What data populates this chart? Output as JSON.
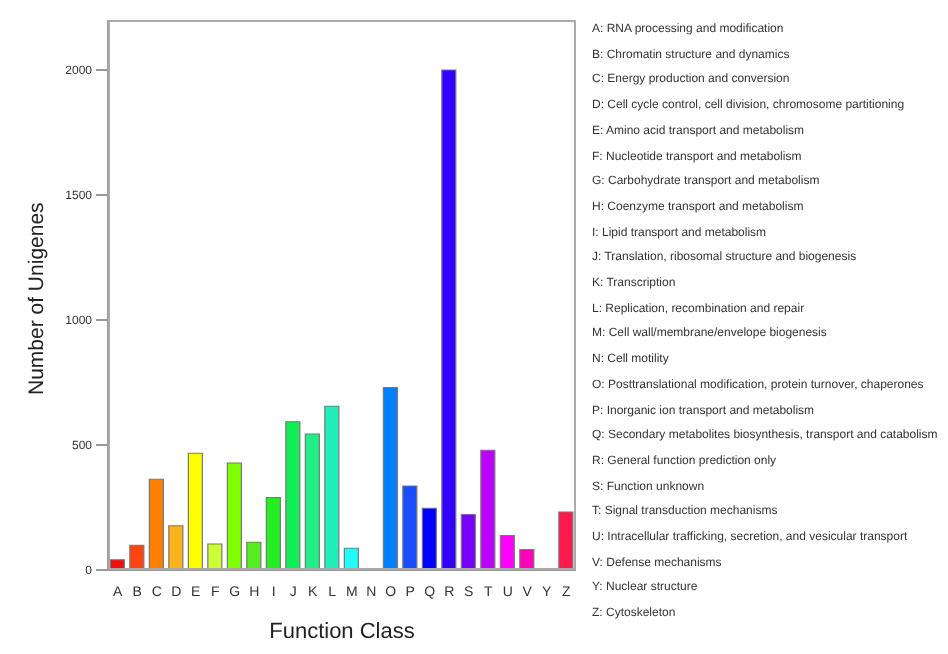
{
  "chart_data": {
    "type": "bar",
    "xlabel": "Function Class",
    "ylabel": "Number of Unigenes",
    "categories": [
      "A",
      "B",
      "C",
      "D",
      "E",
      "F",
      "G",
      "H",
      "I",
      "J",
      "K",
      "L",
      "M",
      "N",
      "O",
      "P",
      "Q",
      "R",
      "S",
      "T",
      "U",
      "V",
      "Y",
      "Z"
    ],
    "values": [
      41,
      99,
      363,
      177,
      467,
      104,
      428,
      111,
      290,
      593,
      544,
      655,
      87,
      5,
      730,
      336,
      247,
      2000,
      222,
      479,
      138,
      82,
      3,
      232
    ],
    "colors": [
      "#ee1111",
      "#ff4411",
      "#ff8000",
      "#ffb31a",
      "#ffff00",
      "#ccff33",
      "#80ff00",
      "#55ee22",
      "#22ee22",
      "#11ee55",
      "#22ee88",
      "#22eebb",
      "#22ffff",
      "#00aaff",
      "#0080ff",
      "#1a4dff",
      "#0000ff",
      "#3300ff",
      "#7700ff",
      "#bb00ff",
      "#ff00ff",
      "#ff00bb",
      "#ff0080",
      "#ff1a4d"
    ],
    "ylim": [
      0,
      2200
    ],
    "yticks": [
      0,
      500,
      1000,
      1500,
      2000
    ],
    "grid": false,
    "legend": false,
    "annotations": [
      "A: RNA processing and modification",
      "B: Chromatin structure and dynamics",
      "C: Energy production and conversion",
      "D: Cell cycle control, cell division, chromosome partitioning",
      "E: Amino acid transport and metabolism",
      "F: Nucleotide transport and metabolism",
      "G: Carbohydrate transport and metabolism",
      "H: Coenzyme transport and metabolism",
      "I: Lipid transport and metabolism",
      "J: Translation, ribosomal structure and biogenesis",
      "K: Transcription",
      "L: Replication, recombination and repair",
      "M: Cell wall/membrane/envelope biogenesis",
      "N: Cell motility",
      "O: Posttranslational modification, protein turnover, chaperones",
      "P: Inorganic ion transport and metabolism",
      "Q: Secondary metabolites biosynthesis, transport and catabolism",
      "R: General function prediction only",
      "S: Function unknown",
      "T: Signal transduction mechanisms",
      "U: Intracellular trafficking, secretion, and vesicular transport",
      "V: Defense mechanisms",
      "Y: Nuclear structure",
      "Z: Cytoskeleton"
    ]
  }
}
